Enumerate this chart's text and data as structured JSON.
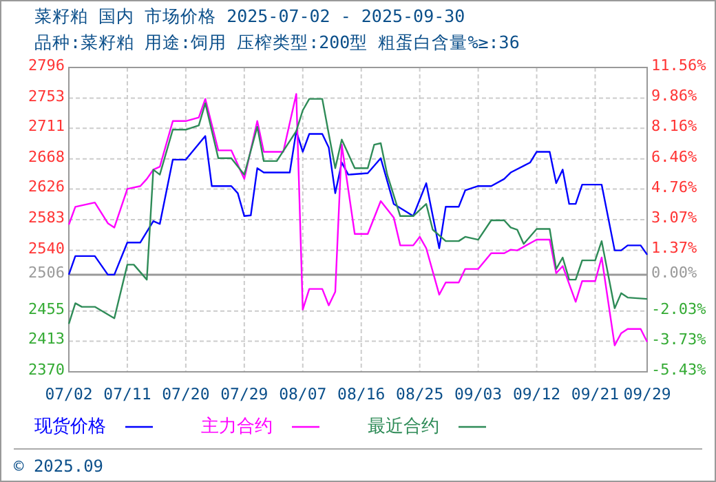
{
  "chart_data": {
    "type": "line",
    "title": "菜籽粕 国内 市场价格 2025-07-02 - 2025-09-30",
    "subtitle": "品种:菜籽粕 用途:饲用 压榨类型:200型 粗蛋白含量%≥:36",
    "annotations": [
      "© 2025.09"
    ],
    "xlim": [
      "2025-07-02",
      "2025-09-29"
    ],
    "xticks": [
      {
        "value": "2025-07-02",
        "label": "07/02"
      },
      {
        "value": "2025-07-11",
        "label": "07/11"
      },
      {
        "value": "2025-07-20",
        "label": "07/20"
      },
      {
        "value": "2025-07-29",
        "label": "07/29"
      },
      {
        "value": "2025-08-07",
        "label": "08/07"
      },
      {
        "value": "2025-08-16",
        "label": "08/16"
      },
      {
        "value": "2025-08-25",
        "label": "08/25"
      },
      {
        "value": "2025-09-03",
        "label": "09/03"
      },
      {
        "value": "2025-09-12",
        "label": "09/12"
      },
      {
        "value": "2025-09-21",
        "label": "09/21"
      },
      {
        "value": "2025-09-29",
        "label": "09/29"
      }
    ],
    "ylim": [
      2370,
      2796
    ],
    "yticks": [
      2370,
      2413,
      2455,
      2506,
      2540,
      2583,
      2626,
      2668,
      2711,
      2753,
      2796
    ],
    "y2lim": [
      -5.43,
      11.56
    ],
    "y2ticks": [
      {
        "value": -5.43,
        "label": "-5.43%"
      },
      {
        "value": -3.73,
        "label": "-3.73%"
      },
      {
        "value": -2.03,
        "label": "-2.03%"
      },
      {
        "value": 0,
        "label": "0.00%"
      },
      {
        "value": 1.37,
        "label": "1.37%"
      },
      {
        "value": 3.07,
        "label": "3.07%"
      },
      {
        "value": 4.76,
        "label": "4.76%"
      },
      {
        "value": 6.46,
        "label": "6.46%"
      },
      {
        "value": 8.16,
        "label": "8.16%"
      },
      {
        "value": 9.86,
        "label": "9.86%"
      },
      {
        "value": 11.56,
        "label": "11.56%"
      }
    ],
    "ref_lines": [
      {
        "axis": "y",
        "value": 2506,
        "color": "#999999"
      }
    ],
    "grid": true,
    "legend": "bottom",
    "line_style": "solid",
    "marker": "none",
    "series": [
      {
        "name": "现货价格",
        "color": "#0000ff",
        "x": [
          "2025-07-02",
          "2025-07-03",
          "2025-07-06",
          "2025-07-08",
          "2025-07-09",
          "2025-07-11",
          "2025-07-13",
          "2025-07-15",
          "2025-07-16",
          "2025-07-18",
          "2025-07-20",
          "2025-07-23",
          "2025-07-24",
          "2025-07-27",
          "2025-07-28",
          "2025-07-29",
          "2025-07-30",
          "2025-07-31",
          "2025-08-01",
          "2025-08-05",
          "2025-08-06",
          "2025-08-07",
          "2025-08-08",
          "2025-08-10",
          "2025-08-11",
          "2025-08-12",
          "2025-08-13",
          "2025-08-14",
          "2025-08-17",
          "2025-08-19",
          "2025-08-21",
          "2025-08-24",
          "2025-08-26",
          "2025-08-28",
          "2025-08-29",
          "2025-08-31",
          "2025-09-01",
          "2025-09-03",
          "2025-09-05",
          "2025-09-07",
          "2025-09-08",
          "2025-09-11",
          "2025-09-12",
          "2025-09-14",
          "2025-09-15",
          "2025-09-16",
          "2025-09-17",
          "2025-09-18",
          "2025-09-19",
          "2025-09-22",
          "2025-09-24",
          "2025-09-25",
          "2025-09-26",
          "2025-09-28",
          "2025-09-29"
        ],
        "values": [
          2506,
          2532,
          2532,
          2506,
          2506,
          2551,
          2551,
          2581,
          2577,
          2667,
          2667,
          2700,
          2630,
          2630,
          2620,
          2588,
          2589,
          2655,
          2649,
          2649,
          2707,
          2678,
          2703,
          2703,
          2684,
          2620,
          2663,
          2646,
          2648,
          2669,
          2605,
          2588,
          2634,
          2543,
          2601,
          2601,
          2624,
          2630,
          2630,
          2640,
          2649,
          2663,
          2678,
          2678,
          2634,
          2653,
          2605,
          2605,
          2632,
          2632,
          2540,
          2540,
          2547,
          2547,
          2534
        ]
      },
      {
        "name": "主力合约",
        "color": "#ff00ff",
        "x": [
          "2025-07-02",
          "2025-07-03",
          "2025-07-06",
          "2025-07-08",
          "2025-07-09",
          "2025-07-11",
          "2025-07-13",
          "2025-07-14",
          "2025-07-15",
          "2025-07-16",
          "2025-07-18",
          "2025-07-20",
          "2025-07-22",
          "2025-07-23",
          "2025-07-25",
          "2025-07-27",
          "2025-07-29",
          "2025-07-31",
          "2025-08-01",
          "2025-08-04",
          "2025-08-06",
          "2025-08-07",
          "2025-08-08",
          "2025-08-10",
          "2025-08-11",
          "2025-08-12",
          "2025-08-13",
          "2025-08-15",
          "2025-08-17",
          "2025-08-19",
          "2025-08-21",
          "2025-08-22",
          "2025-08-24",
          "2025-08-25",
          "2025-08-26",
          "2025-08-28",
          "2025-08-29",
          "2025-08-31",
          "2025-09-01",
          "2025-09-03",
          "2025-09-05",
          "2025-09-07",
          "2025-09-08",
          "2025-09-09",
          "2025-09-12",
          "2025-09-14",
          "2025-09-15",
          "2025-09-16",
          "2025-09-18",
          "2025-09-19",
          "2025-09-21",
          "2025-09-22",
          "2025-09-24",
          "2025-09-25",
          "2025-09-26",
          "2025-09-28",
          "2025-09-29"
        ],
        "values": [
          2576,
          2601,
          2607,
          2578,
          2572,
          2626,
          2630,
          2640,
          2653,
          2657,
          2721,
          2721,
          2726,
          2752,
          2680,
          2680,
          2640,
          2721,
          2678,
          2678,
          2759,
          2457,
          2486,
          2486,
          2463,
          2482,
          2688,
          2563,
          2563,
          2609,
          2586,
          2547,
          2547,
          2559,
          2543,
          2478,
          2495,
          2495,
          2514,
          2514,
          2536,
          2536,
          2541,
          2540,
          2555,
          2555,
          2508,
          2518,
          2468,
          2497,
          2497,
          2530,
          2407,
          2424,
          2430,
          2430,
          2412
        ]
      },
      {
        "name": "最近合约",
        "color": "#2e8b57",
        "x": [
          "2025-07-02",
          "2025-07-03",
          "2025-07-04",
          "2025-07-06",
          "2025-07-09",
          "2025-07-11",
          "2025-07-12",
          "2025-07-14",
          "2025-07-15",
          "2025-07-16",
          "2025-07-18",
          "2025-07-20",
          "2025-07-22",
          "2025-07-23",
          "2025-07-25",
          "2025-07-27",
          "2025-07-29",
          "2025-07-31",
          "2025-08-01",
          "2025-08-03",
          "2025-08-06",
          "2025-08-07",
          "2025-08-08",
          "2025-08-10",
          "2025-08-11",
          "2025-08-12",
          "2025-08-13",
          "2025-08-15",
          "2025-08-17",
          "2025-08-18",
          "2025-08-19",
          "2025-08-20",
          "2025-08-22",
          "2025-08-24",
          "2025-08-26",
          "2025-08-27",
          "2025-08-29",
          "2025-08-31",
          "2025-09-01",
          "2025-09-03",
          "2025-09-05",
          "2025-09-07",
          "2025-09-08",
          "2025-09-09",
          "2025-09-10",
          "2025-09-12",
          "2025-09-14",
          "2025-09-15",
          "2025-09-16",
          "2025-09-17",
          "2025-09-18",
          "2025-09-19",
          "2025-09-21",
          "2025-09-22",
          "2025-09-24",
          "2025-09-25",
          "2025-09-26",
          "2025-09-29"
        ],
        "values": [
          2437,
          2466,
          2461,
          2461,
          2445,
          2520,
          2520,
          2499,
          2653,
          2646,
          2709,
          2709,
          2715,
          2746,
          2669,
          2669,
          2646,
          2713,
          2665,
          2665,
          2707,
          2736,
          2752,
          2752,
          2703,
          2655,
          2695,
          2655,
          2655,
          2688,
          2690,
          2646,
          2588,
          2588,
          2605,
          2569,
          2553,
          2553,
          2559,
          2555,
          2582,
          2582,
          2572,
          2569,
          2549,
          2570,
          2570,
          2514,
          2530,
          2499,
          2499,
          2526,
          2526,
          2553,
          2459,
          2480,
          2474,
          2472
        ]
      }
    ]
  }
}
